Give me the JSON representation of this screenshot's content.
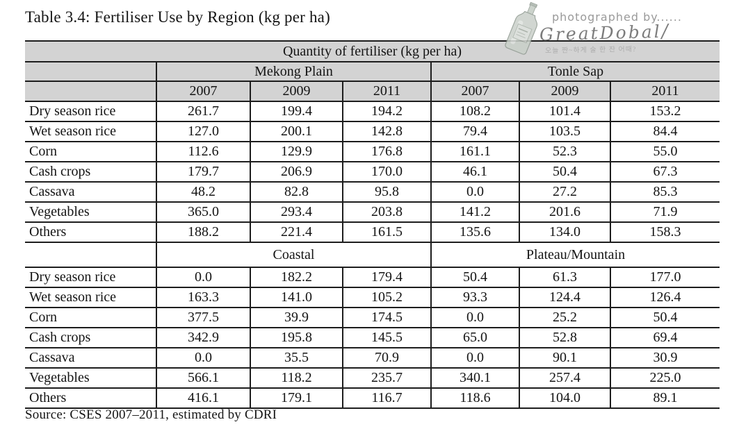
{
  "title": "Table 3.4: Fertiliser Use by Region (kg per ha)",
  "watermark": {
    "line1": "photographed by......",
    "signature": "GreatDobal",
    "flourish": "/",
    "caption": "오늘 짠~하게 술 한 잔 어때?"
  },
  "table": {
    "spanning_header": "Quantity of fertiliser (kg per ha)",
    "years": [
      "2007",
      "2009",
      "2011"
    ],
    "sections": [
      {
        "region_groups": [
          "Mekong Plain",
          "Tonle Sap"
        ],
        "rows": [
          {
            "crop": "Dry season rice",
            "values": [
              "261.7",
              "199.4",
              "194.2",
              "108.2",
              "101.4",
              "153.2"
            ]
          },
          {
            "crop": "Wet season rice",
            "values": [
              "127.0",
              "200.1",
              "142.8",
              "79.4",
              "103.5",
              "84.4"
            ]
          },
          {
            "crop": "Corn",
            "values": [
              "112.6",
              "129.9",
              "176.8",
              "161.1",
              "52.3",
              "55.0"
            ]
          },
          {
            "crop": "Cash crops",
            "values": [
              "179.7",
              "206.9",
              "170.0",
              "46.1",
              "50.4",
              "67.3"
            ]
          },
          {
            "crop": "Cassava",
            "values": [
              "48.2",
              "82.8",
              "95.8",
              "0.0",
              "27.2",
              "85.3"
            ]
          },
          {
            "crop": "Vegetables",
            "values": [
              "365.0",
              "293.4",
              "203.8",
              "141.2",
              "201.6",
              "71.9"
            ]
          },
          {
            "crop": "Others",
            "values": [
              "188.2",
              "221.4",
              "161.5",
              "135.6",
              "134.0",
              "158.3"
            ]
          }
        ]
      },
      {
        "region_groups": [
          "Coastal",
          "Plateau/Mountain"
        ],
        "rows": [
          {
            "crop": "Dry season rice",
            "values": [
              "0.0",
              "182.2",
              "179.4",
              "50.4",
              "61.3",
              "177.0"
            ]
          },
          {
            "crop": "Wet season rice",
            "values": [
              "163.3",
              "141.0",
              "105.2",
              "93.3",
              "124.4",
              "126.4"
            ]
          },
          {
            "crop": "Corn",
            "values": [
              "377.5",
              "39.9",
              "174.5",
              "0.0",
              "25.2",
              "50.4"
            ]
          },
          {
            "crop": "Cash crops",
            "values": [
              "342.9",
              "195.8",
              "145.5",
              "65.0",
              "52.8",
              "69.4"
            ]
          },
          {
            "crop": "Cassava",
            "values": [
              "0.0",
              "35.5",
              "70.9",
              "0.0",
              "90.1",
              "30.9"
            ]
          },
          {
            "crop": "Vegetables",
            "values": [
              "566.1",
              "118.2",
              "235.7",
              "340.1",
              "257.4",
              "225.0"
            ]
          },
          {
            "crop": "Others",
            "values": [
              "416.1",
              "179.1",
              "116.7",
              "118.6",
              "104.0",
              "89.1"
            ]
          }
        ]
      }
    ]
  },
  "source": "Source: CSES 2007–2011, estimated by CDRI"
}
